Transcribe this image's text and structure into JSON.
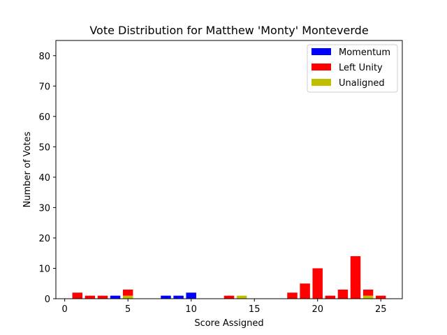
{
  "chart_data": {
    "type": "bar",
    "title": "Vote Distribution for Matthew 'Monty' Monteverde",
    "xlabel": "Score Assigned",
    "ylabel": "Number of Votes",
    "xlim": [
      -0.7,
      26.7
    ],
    "ylim": [
      0,
      85
    ],
    "x_ticks": [
      0,
      5,
      10,
      15,
      20,
      25
    ],
    "y_ticks": [
      0,
      10,
      20,
      30,
      40,
      50,
      60,
      70,
      80
    ],
    "grid": false,
    "legend_position": "top-right",
    "stacked": true,
    "series": [
      {
        "name": "Momentum",
        "color": "#0000ff",
        "points": [
          {
            "x": 4,
            "y": 1
          },
          {
            "x": 8,
            "y": 1
          },
          {
            "x": 9,
            "y": 1
          },
          {
            "x": 10,
            "y": 2
          }
        ]
      },
      {
        "name": "Left Unity",
        "color": "#ff0000",
        "points": [
          {
            "x": 1,
            "y": 2
          },
          {
            "x": 2,
            "y": 1
          },
          {
            "x": 3,
            "y": 1
          },
          {
            "x": 5,
            "y": 2
          },
          {
            "x": 13,
            "y": 1
          },
          {
            "x": 18,
            "y": 2
          },
          {
            "x": 19,
            "y": 5
          },
          {
            "x": 20,
            "y": 10
          },
          {
            "x": 21,
            "y": 1
          },
          {
            "x": 22,
            "y": 3
          },
          {
            "x": 23,
            "y": 14
          },
          {
            "x": 24,
            "y": 2
          },
          {
            "x": 25,
            "y": 1
          }
        ]
      },
      {
        "name": "Unaligned",
        "color": "#bfbf00",
        "points": [
          {
            "x": 5,
            "y": 1
          },
          {
            "x": 14,
            "y": 1
          },
          {
            "x": 24,
            "y": 1
          }
        ]
      }
    ],
    "stack_order": [
      "Unaligned",
      "Momentum",
      "Left Unity"
    ]
  }
}
